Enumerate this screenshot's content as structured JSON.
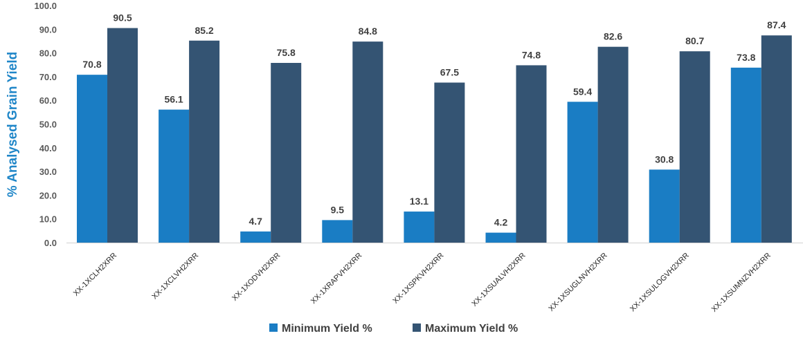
{
  "chart_data": {
    "type": "bar",
    "title": "",
    "ylabel": "% Analysed Grain Yield",
    "xlabel": "",
    "ylim": [
      0,
      100
    ],
    "yticks": [
      "0.0",
      "10.0",
      "20.0",
      "30.0",
      "40.0",
      "50.0",
      "60.0",
      "70.0",
      "80.0",
      "90.0",
      "100.0"
    ],
    "categories": [
      "XX-1XCLH2XRR",
      "XX-1XCLVH2XRR",
      "XX-1XODVH2XRR",
      "XX-1XRAPVH2XRR",
      "XX-1XSPKVH2XRR",
      "XX-1XSUALVH2XRR",
      "XX-1XSUGLNVH2XRR",
      "XX-1XSULOGVH2XRR",
      "XX-1XSUMNZVH2XRR"
    ],
    "series": [
      {
        "name": "Minimum Yield %",
        "color": "#1a7dc4",
        "values": [
          70.8,
          56.1,
          4.7,
          9.5,
          13.1,
          4.2,
          59.4,
          30.8,
          73.8
        ],
        "labels": [
          "70.8",
          "56.1",
          "4.7",
          "9.5",
          "13.1",
          "4.2",
          "59.4",
          "30.8",
          "73.8"
        ]
      },
      {
        "name": "Maximum Yield %",
        "color": "#345473",
        "values": [
          90.5,
          85.2,
          75.8,
          84.8,
          67.5,
          74.8,
          82.6,
          80.7,
          87.4
        ],
        "labels": [
          "90.5",
          "85.2",
          "75.8",
          "84.8",
          "67.5",
          "74.8",
          "82.6",
          "80.7",
          "87.4"
        ]
      }
    ],
    "grid": false,
    "legend_position": "bottom"
  }
}
